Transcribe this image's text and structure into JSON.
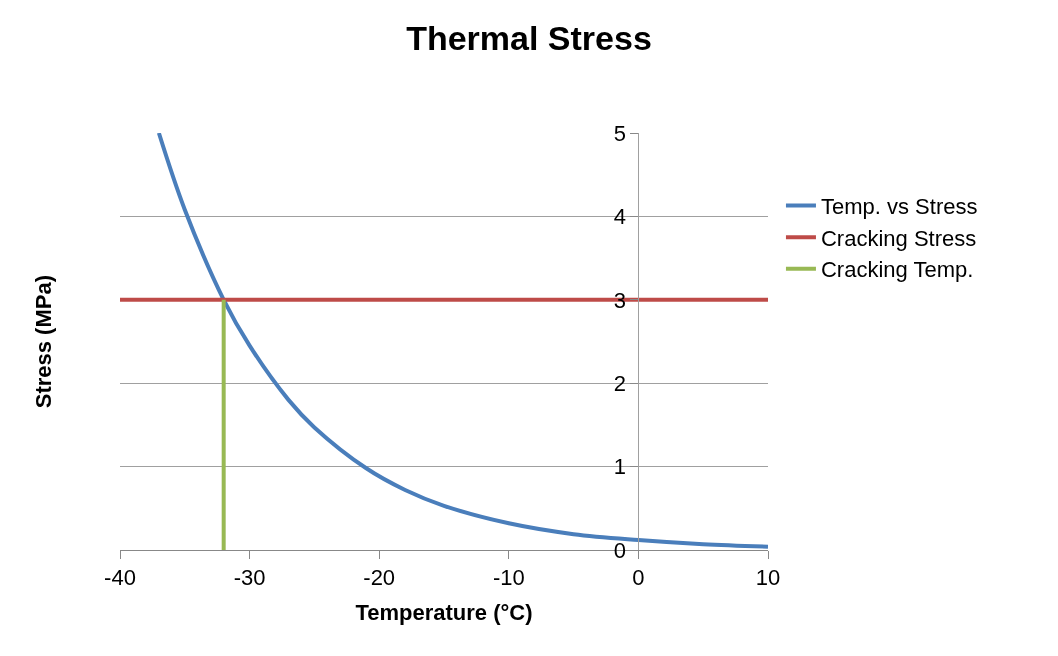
{
  "chart_data": {
    "type": "line",
    "title": "Thermal Stress",
    "xlabel": "Temperature (°C)",
    "ylabel": "Stress (MPa)",
    "xlim": [
      -40,
      10
    ],
    "xticks": [
      -40,
      -30,
      -20,
      -10,
      0,
      10
    ],
    "ylim": [
      0,
      5
    ],
    "yticks": [
      0,
      1,
      2,
      3,
      4,
      5
    ],
    "grid": "y",
    "legend": "right",
    "marker": "none",
    "line_style": "solid",
    "series": [
      {
        "name": "Temp. vs Stress",
        "color": "#4a7ebb",
        "x": [
          -37,
          -35,
          -32,
          -30,
          -27,
          -25,
          -21,
          -18,
          -15,
          -10,
          -5,
          0,
          5,
          10
        ],
        "values": [
          5.0,
          4.08,
          3.0,
          2.45,
          1.8,
          1.47,
          0.98,
          0.72,
          0.53,
          0.32,
          0.19,
          0.12,
          0.07,
          0.04
        ]
      },
      {
        "name": "Cracking Stress",
        "color": "#be4b48",
        "x": [
          -40,
          10
        ],
        "values": [
          3,
          3
        ]
      },
      {
        "name": "Cracking Temp.",
        "color": "#98b954",
        "x": [
          -32,
          -32
        ],
        "values": [
          0,
          3
        ]
      }
    ]
  }
}
